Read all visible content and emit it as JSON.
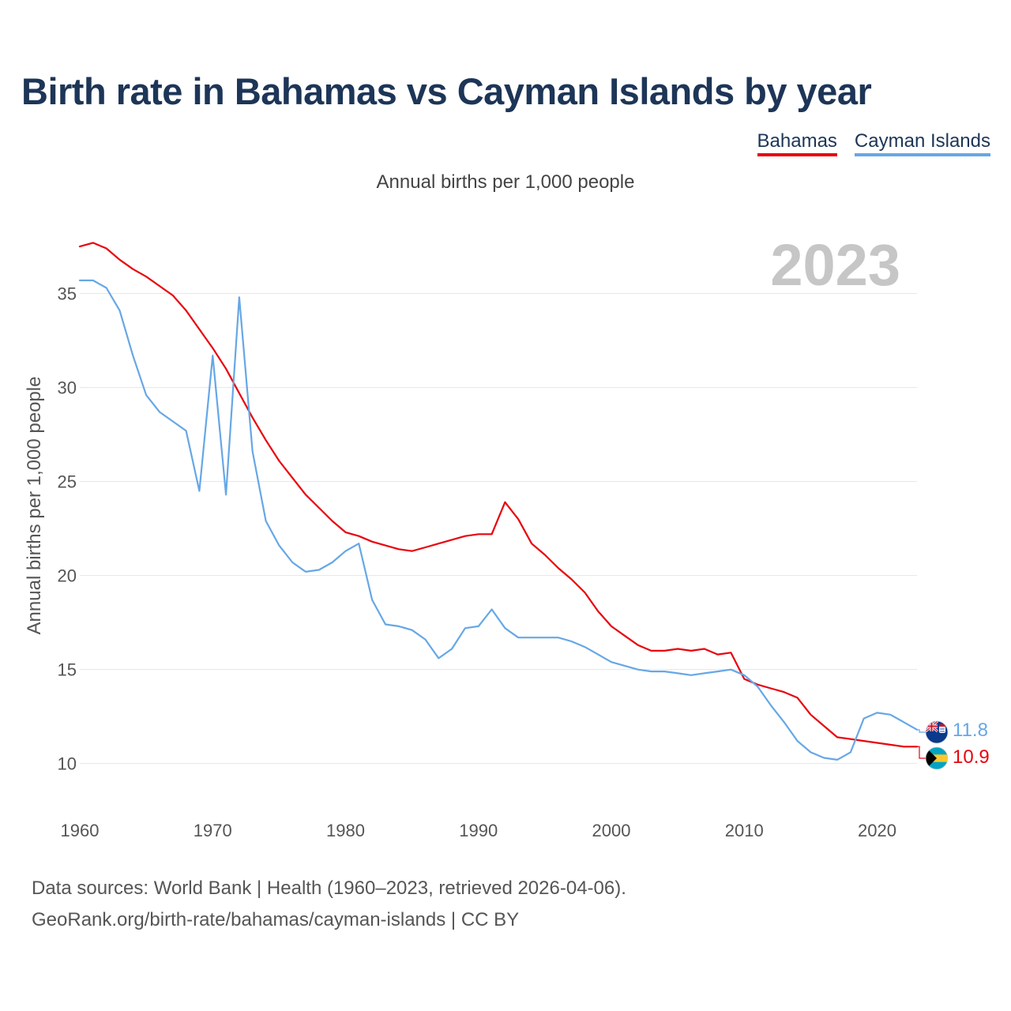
{
  "title": "Birth rate in Bahamas vs Cayman Islands by year",
  "subtitle": "Annual births per 1,000 people",
  "year_label": "2023",
  "footer": {
    "line1": "Data sources: World Bank | Health (1960–2023, retrieved 2026-04-06).",
    "line2": "GeoRank.org/birth-rate/bahamas/cayman-islands | CC BY"
  },
  "colors": {
    "bahamas": "#e8040c",
    "cayman": "#66a7e6",
    "grid": "#e6e6e6"
  },
  "icons": [
    "cayman-islands-flag-icon",
    "bahamas-flag-icon"
  ],
  "chart_data": {
    "type": "line",
    "title": "Birth rate in Bahamas vs Cayman Islands by year",
    "subtitle": "Annual births per 1,000 people",
    "xlabel": "",
    "ylabel": "Annual births per 1,000 people",
    "xlim": [
      1960,
      2023
    ],
    "ylim": [
      8.6,
      37.8
    ],
    "x_ticks": [
      1960,
      1970,
      1980,
      1990,
      2000,
      2010,
      2020
    ],
    "y_ticks": [
      10,
      15,
      20,
      25,
      30,
      35
    ],
    "grid": true,
    "legend_position": "top-right",
    "x": [
      1960,
      1961,
      1962,
      1963,
      1964,
      1965,
      1966,
      1967,
      1968,
      1969,
      1970,
      1971,
      1972,
      1973,
      1974,
      1975,
      1976,
      1977,
      1978,
      1979,
      1980,
      1981,
      1982,
      1983,
      1984,
      1985,
      1986,
      1987,
      1988,
      1989,
      1990,
      1991,
      1992,
      1993,
      1994,
      1995,
      1996,
      1997,
      1998,
      1999,
      2000,
      2001,
      2002,
      2003,
      2004,
      2005,
      2006,
      2007,
      2008,
      2009,
      2010,
      2011,
      2012,
      2013,
      2014,
      2015,
      2016,
      2017,
      2018,
      2019,
      2020,
      2021,
      2022,
      2023
    ],
    "series": [
      {
        "name": "Bahamas",
        "color": "#e8040c",
        "end_label": "10.9",
        "values": [
          37.5,
          37.7,
          37.4,
          36.8,
          36.3,
          35.9,
          35.4,
          34.9,
          34.1,
          33.1,
          32.1,
          31.0,
          29.7,
          28.4,
          27.2,
          26.1,
          25.2,
          24.3,
          23.6,
          22.9,
          22.3,
          22.1,
          21.8,
          21.6,
          21.4,
          21.3,
          21.5,
          21.7,
          21.9,
          22.1,
          22.2,
          22.2,
          23.9,
          23.0,
          21.7,
          21.1,
          20.4,
          19.8,
          19.1,
          18.1,
          17.3,
          16.8,
          16.3,
          16.0,
          16.0,
          16.1,
          16.0,
          16.1,
          15.8,
          15.9,
          14.5,
          14.2,
          14.0,
          13.8,
          13.5,
          12.6,
          12.0,
          11.4,
          11.3,
          11.2,
          11.1,
          11.0,
          10.9,
          10.9
        ]
      },
      {
        "name": "Cayman Islands",
        "color": "#66a7e6",
        "end_label": "11.8",
        "values": [
          35.7,
          35.7,
          35.3,
          34.1,
          31.7,
          29.6,
          28.7,
          28.2,
          27.7,
          24.5,
          31.7,
          24.3,
          34.8,
          26.6,
          22.9,
          21.6,
          20.7,
          20.2,
          20.3,
          20.7,
          21.3,
          21.7,
          18.7,
          17.4,
          17.3,
          17.1,
          16.6,
          15.6,
          16.1,
          17.2,
          17.3,
          18.2,
          17.2,
          16.7,
          16.7,
          16.7,
          16.7,
          16.5,
          16.2,
          15.8,
          15.4,
          15.2,
          15.0,
          14.9,
          14.9,
          14.8,
          14.7,
          14.8,
          14.9,
          15.0,
          14.7,
          14.1,
          13.1,
          12.2,
          11.2,
          10.6,
          10.3,
          10.2,
          10.6,
          12.4,
          12.7,
          12.6,
          12.2,
          11.8
        ]
      }
    ]
  }
}
